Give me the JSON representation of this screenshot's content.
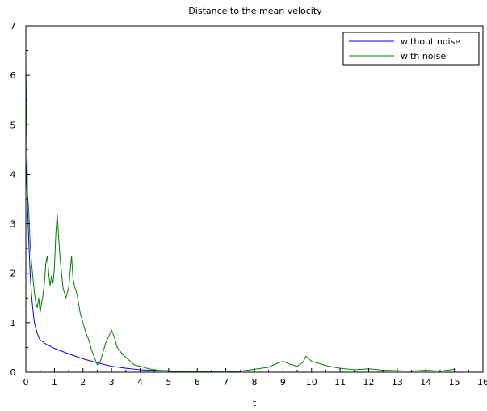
{
  "chart_data": {
    "type": "line",
    "title": "Distance to the mean velocity",
    "xlabel": "t",
    "ylabel": "",
    "xlim": [
      0,
      16
    ],
    "ylim": [
      0,
      7
    ],
    "x_ticks": [
      0,
      1,
      2,
      3,
      4,
      5,
      6,
      7,
      8,
      9,
      10,
      11,
      12,
      13,
      14,
      15,
      16
    ],
    "y_ticks": [
      0,
      1,
      2,
      3,
      4,
      5,
      6,
      7
    ],
    "grid": false,
    "legend_position": "top-right",
    "series": [
      {
        "name": "without noise",
        "color": "#0000ff",
        "points": [
          [
            0,
            4.35
          ],
          [
            0.05,
            3.5
          ],
          [
            0.1,
            2.7
          ],
          [
            0.15,
            2.0
          ],
          [
            0.2,
            1.55
          ],
          [
            0.25,
            1.25
          ],
          [
            0.3,
            1.0
          ],
          [
            0.4,
            0.78
          ],
          [
            0.5,
            0.65
          ],
          [
            0.7,
            0.57
          ],
          [
            1.0,
            0.48
          ],
          [
            1.5,
            0.37
          ],
          [
            2.0,
            0.27
          ],
          [
            2.5,
            0.19
          ],
          [
            3.0,
            0.12
          ],
          [
            3.5,
            0.08
          ],
          [
            4.0,
            0.05
          ],
          [
            4.5,
            0.035
          ],
          [
            5.0,
            0.02
          ],
          [
            5.5,
            0.012
          ],
          [
            6.0,
            0.007
          ],
          [
            7.0,
            0.003
          ]
        ]
      },
      {
        "name": "with noise",
        "color": "#008000",
        "points": [
          [
            0,
            6.2
          ],
          [
            0.03,
            5.0
          ],
          [
            0.06,
            3.6
          ],
          [
            0.1,
            3.3
          ],
          [
            0.15,
            2.6
          ],
          [
            0.2,
            2.2
          ],
          [
            0.25,
            1.9
          ],
          [
            0.3,
            1.6
          ],
          [
            0.35,
            1.4
          ],
          [
            0.4,
            1.3
          ],
          [
            0.45,
            1.5
          ],
          [
            0.5,
            1.2
          ],
          [
            0.55,
            1.4
          ],
          [
            0.6,
            1.55
          ],
          [
            0.65,
            1.8
          ],
          [
            0.7,
            2.2
          ],
          [
            0.75,
            2.35
          ],
          [
            0.8,
            2.0
          ],
          [
            0.85,
            1.75
          ],
          [
            0.9,
            1.95
          ],
          [
            0.95,
            1.8
          ],
          [
            1.0,
            2.1
          ],
          [
            1.05,
            2.8
          ],
          [
            1.1,
            3.2
          ],
          [
            1.15,
            2.7
          ],
          [
            1.2,
            2.3
          ],
          [
            1.3,
            1.7
          ],
          [
            1.4,
            1.5
          ],
          [
            1.5,
            1.7
          ],
          [
            1.6,
            2.35
          ],
          [
            1.65,
            1.9
          ],
          [
            1.7,
            1.75
          ],
          [
            1.8,
            1.55
          ],
          [
            1.9,
            1.2
          ],
          [
            2.0,
            1.0
          ],
          [
            2.1,
            0.8
          ],
          [
            2.2,
            0.65
          ],
          [
            2.3,
            0.45
          ],
          [
            2.4,
            0.3
          ],
          [
            2.5,
            0.15
          ],
          [
            2.6,
            0.2
          ],
          [
            2.7,
            0.4
          ],
          [
            2.8,
            0.6
          ],
          [
            2.9,
            0.72
          ],
          [
            3.0,
            0.85
          ],
          [
            3.1,
            0.7
          ],
          [
            3.2,
            0.5
          ],
          [
            3.4,
            0.35
          ],
          [
            3.6,
            0.25
          ],
          [
            3.8,
            0.15
          ],
          [
            4.0,
            0.12
          ],
          [
            4.3,
            0.07
          ],
          [
            4.6,
            0.04
          ],
          [
            5.0,
            0.03
          ],
          [
            5.5,
            0.01
          ],
          [
            6.0,
            0.008
          ],
          [
            6.5,
            0.005
          ],
          [
            7.0,
            0.005
          ],
          [
            7.5,
            0.02
          ],
          [
            8.0,
            0.06
          ],
          [
            8.5,
            0.1
          ],
          [
            8.8,
            0.18
          ],
          [
            9.0,
            0.22
          ],
          [
            9.2,
            0.17
          ],
          [
            9.5,
            0.12
          ],
          [
            9.7,
            0.2
          ],
          [
            9.8,
            0.32
          ],
          [
            10.0,
            0.22
          ],
          [
            10.3,
            0.17
          ],
          [
            10.6,
            0.12
          ],
          [
            11.0,
            0.08
          ],
          [
            11.5,
            0.05
          ],
          [
            12.0,
            0.07
          ],
          [
            12.5,
            0.04
          ],
          [
            13.0,
            0.03
          ],
          [
            13.5,
            0.02
          ],
          [
            14.0,
            0.04
          ],
          [
            14.5,
            0.02
          ],
          [
            15.0,
            0.06
          ]
        ]
      }
    ]
  }
}
